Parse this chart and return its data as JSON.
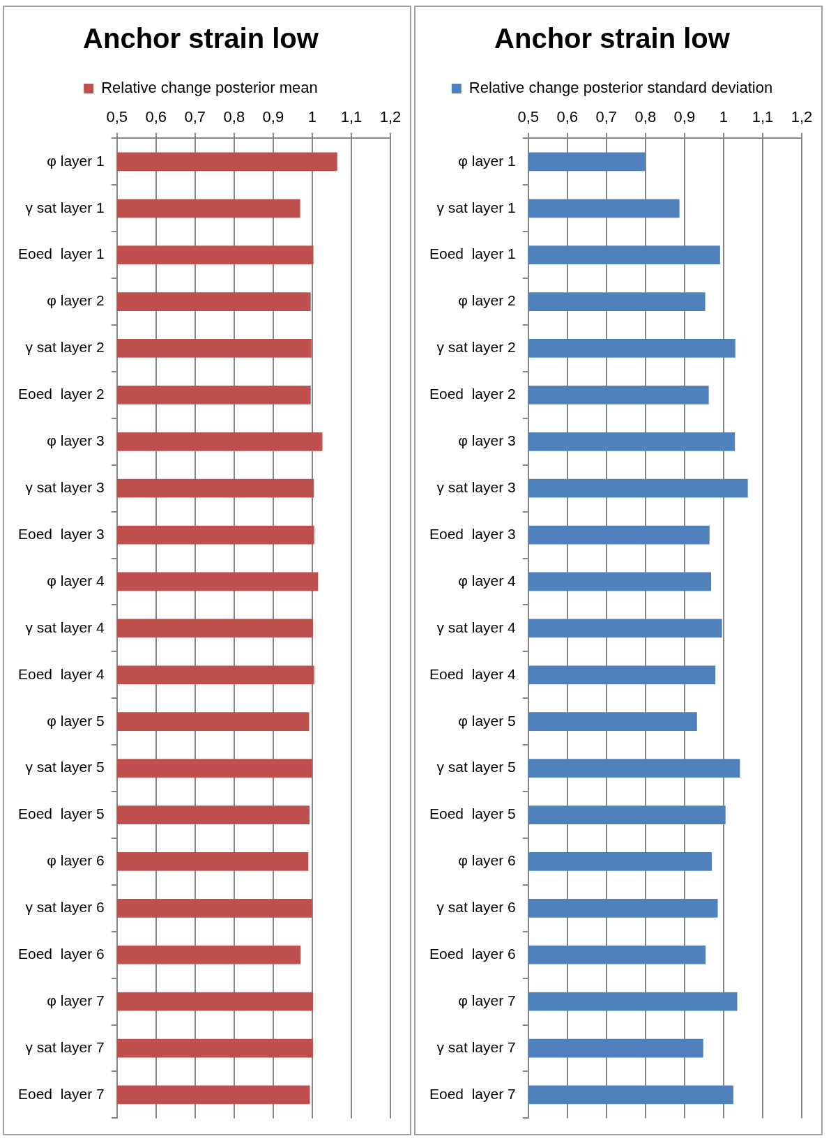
{
  "chart_data": [
    {
      "type": "bar",
      "orientation": "horizontal",
      "title": "Anchor strain low",
      "categories": [
        "φ layer 1",
        "γ sat layer 1",
        "Eoed  layer 1",
        "φ layer 2",
        "γ sat layer 2",
        "Eoed  layer 2",
        "φ layer 3",
        "γ sat layer 3",
        "Eoed  layer 3",
        "φ layer 4",
        "γ sat layer 4",
        "Eoed  layer 4",
        "φ layer 5",
        "γ sat layer 5",
        "Eoed  layer 5",
        "φ layer 6",
        "γ sat layer 6",
        "Eoed  layer 6",
        "φ layer 7",
        "γ sat layer 7",
        "Eoed  layer 7"
      ],
      "series": [
        {
          "name": "Relative change posterior mean",
          "color": "#c0504d",
          "values": [
            1.064,
            0.969,
            1.003,
            0.996,
            0.998,
            0.996,
            1.026,
            1.004,
            1.005,
            1.015,
            1.002,
            1.005,
            0.992,
            0.999,
            0.993,
            0.99,
            0.999,
            0.97,
            1.002,
            1.002,
            0.994
          ]
        }
      ],
      "xlim": [
        0.5,
        1.2
      ],
      "xticks": [
        {
          "value": 0.5,
          "label": "0,5"
        },
        {
          "value": 0.6,
          "label": "0,6"
        },
        {
          "value": 0.7,
          "label": "0,7"
        },
        {
          "value": 0.8,
          "label": "0,8"
        },
        {
          "value": 0.9,
          "label": "0,9"
        },
        1,
        {
          "value": 1.1,
          "label": "1,1"
        },
        {
          "value": 1.2,
          "label": "1,2"
        }
      ],
      "grid": "x",
      "legend": "top"
    },
    {
      "type": "bar",
      "orientation": "horizontal",
      "title": "Anchor strain low",
      "categories": [
        "φ layer 1",
        "γ sat layer 1",
        "Eoed  layer 1",
        "φ layer 2",
        "γ sat layer 2",
        "Eoed  layer 2",
        "φ layer 3",
        "γ sat layer 3",
        "Eoed  layer 3",
        "φ layer 4",
        "γ sat layer 4",
        "Eoed  layer 4",
        "φ layer 5",
        "γ sat layer 5",
        "Eoed  layer 5",
        "φ layer 6",
        "γ sat layer 6",
        "Eoed  layer 6",
        "φ layer 7",
        "γ sat layer 7",
        "Eoed  layer 7"
      ],
      "series": [
        {
          "name": "Relative change posterior standard deviation",
          "color": "#4f81bd",
          "values": [
            0.8,
            0.887,
            0.991,
            0.953,
            1.03,
            0.962,
            1.029,
            1.062,
            0.964,
            0.968,
            0.996,
            0.979,
            0.932,
            1.042,
            1.005,
            0.97,
            0.985,
            0.954,
            1.035,
            0.948,
            1.025
          ]
        }
      ],
      "xlim": [
        0.5,
        1.2
      ],
      "xticks": [
        {
          "value": 0.5,
          "label": "0,5"
        },
        {
          "value": 0.6,
          "label": "0,6"
        },
        {
          "value": 0.7,
          "label": "0,7"
        },
        {
          "value": 0.8,
          "label": "0,8"
        },
        {
          "value": 0.9,
          "label": "0,9"
        },
        1,
        {
          "value": 1.1,
          "label": "1,1"
        },
        {
          "value": 1.2,
          "label": "1,2"
        }
      ],
      "grid": "x",
      "legend": "top"
    }
  ]
}
